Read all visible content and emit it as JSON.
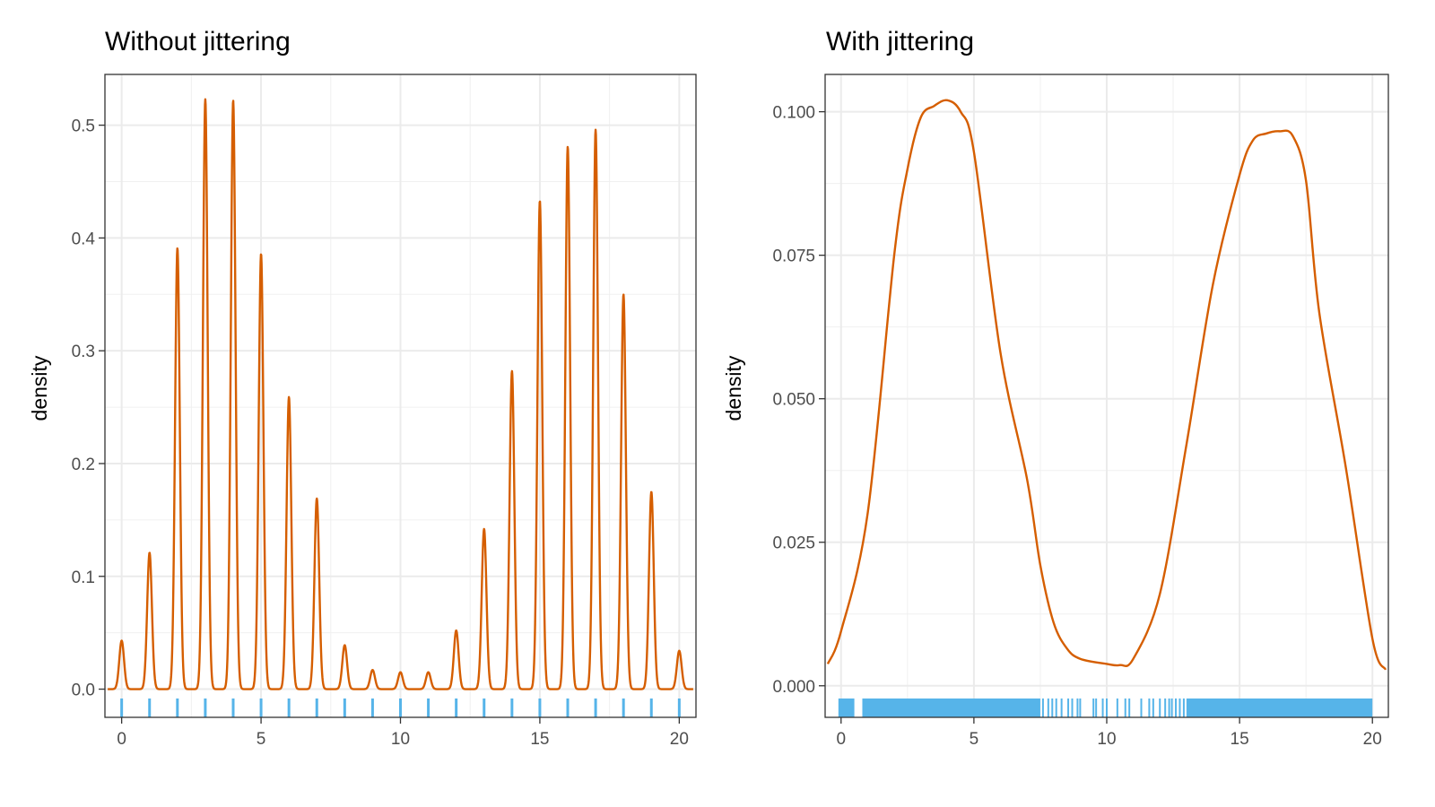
{
  "chart_data": [
    {
      "type": "line",
      "title": "Without jittering",
      "xlabel": "",
      "ylabel": "density",
      "xlim": [
        -0.6,
        20.6
      ],
      "ylim": [
        -0.025,
        0.545
      ],
      "xticks": [
        0,
        5,
        10,
        15,
        20
      ],
      "xtick_labels": [
        "0",
        "5",
        "10",
        "15",
        "20"
      ],
      "yticks": [
        0,
        0.1,
        0.2,
        0.3,
        0.4,
        0.5
      ],
      "ytick_labels": [
        "0.0",
        "0.1",
        "0.2",
        "0.3",
        "0.4",
        "0.5"
      ],
      "grid": true,
      "line_color": "#D55E00",
      "rug_color": "#56B4E9",
      "series": [
        {
          "kind": "density-peaks",
          "x": [
            0,
            1,
            2,
            3,
            4,
            5,
            6,
            7,
            8,
            9,
            10,
            11,
            12,
            13,
            14,
            15,
            16,
            17,
            18,
            19,
            20
          ],
          "y": [
            0.043,
            0.121,
            0.391,
            0.523,
            0.522,
            0.386,
            0.259,
            0.169,
            0.039,
            0.017,
            0.015,
            0.015,
            0.052,
            0.142,
            0.282,
            0.433,
            0.481,
            0.496,
            0.35,
            0.175,
            0.034
          ],
          "x_range": [
            -0.5,
            20.5
          ]
        }
      ],
      "rug": [
        0,
        1,
        2,
        3,
        4,
        5,
        6,
        7,
        8,
        9,
        10,
        11,
        12,
        13,
        14,
        15,
        16,
        17,
        18,
        19,
        20
      ]
    },
    {
      "type": "line",
      "title": "With jittering",
      "xlabel": "",
      "ylabel": "density",
      "xlim": [
        -0.6,
        20.6
      ],
      "ylim": [
        -0.0055,
        0.1065
      ],
      "xticks": [
        0,
        5,
        10,
        15,
        20
      ],
      "xtick_labels": [
        "0",
        "5",
        "10",
        "15",
        "20"
      ],
      "yticks": [
        0,
        0.025,
        0.05,
        0.075,
        0.1
      ],
      "ytick_labels": [
        "0.000",
        "0.025",
        "0.050",
        "0.075",
        "0.100"
      ],
      "grid": true,
      "line_color": "#D55E00",
      "rug_color": "#56B4E9",
      "series": [
        {
          "kind": "density-curve",
          "x": [
            -0.5,
            0,
            1,
            2,
            2.5,
            3,
            3.5,
            4,
            4.5,
            5,
            6,
            7,
            7.5,
            8,
            8.5,
            9,
            10,
            10.5,
            11,
            12,
            13,
            14,
            15,
            15.5,
            16,
            16.5,
            17,
            17.5,
            18,
            19,
            20,
            20.5
          ],
          "y": [
            0.0038,
            0.0095,
            0.03,
            0.075,
            0.09,
            0.099,
            0.101,
            0.102,
            0.1,
            0.093,
            0.058,
            0.036,
            0.021,
            0.011,
            0.0065,
            0.0047,
            0.0038,
            0.0036,
            0.0047,
            0.016,
            0.042,
            0.07,
            0.089,
            0.095,
            0.0962,
            0.0966,
            0.0958,
            0.088,
            0.065,
            0.038,
            0.0082,
            0.0028
          ]
        }
      ],
      "rug_bands": [
        [
          -0.1,
          0.5
        ],
        [
          0.8,
          7.5
        ],
        [
          13.0,
          20.0
        ]
      ],
      "rug": [
        7.6,
        7.8,
        7.95,
        8.1,
        8.3,
        8.55,
        8.7,
        8.9,
        9.0,
        9.5,
        9.6,
        9.85,
        10.0,
        10.4,
        10.7,
        10.85,
        11.3,
        11.6,
        11.75,
        12.0,
        12.2,
        12.35,
        12.45,
        12.6,
        12.75,
        12.9
      ]
    }
  ]
}
